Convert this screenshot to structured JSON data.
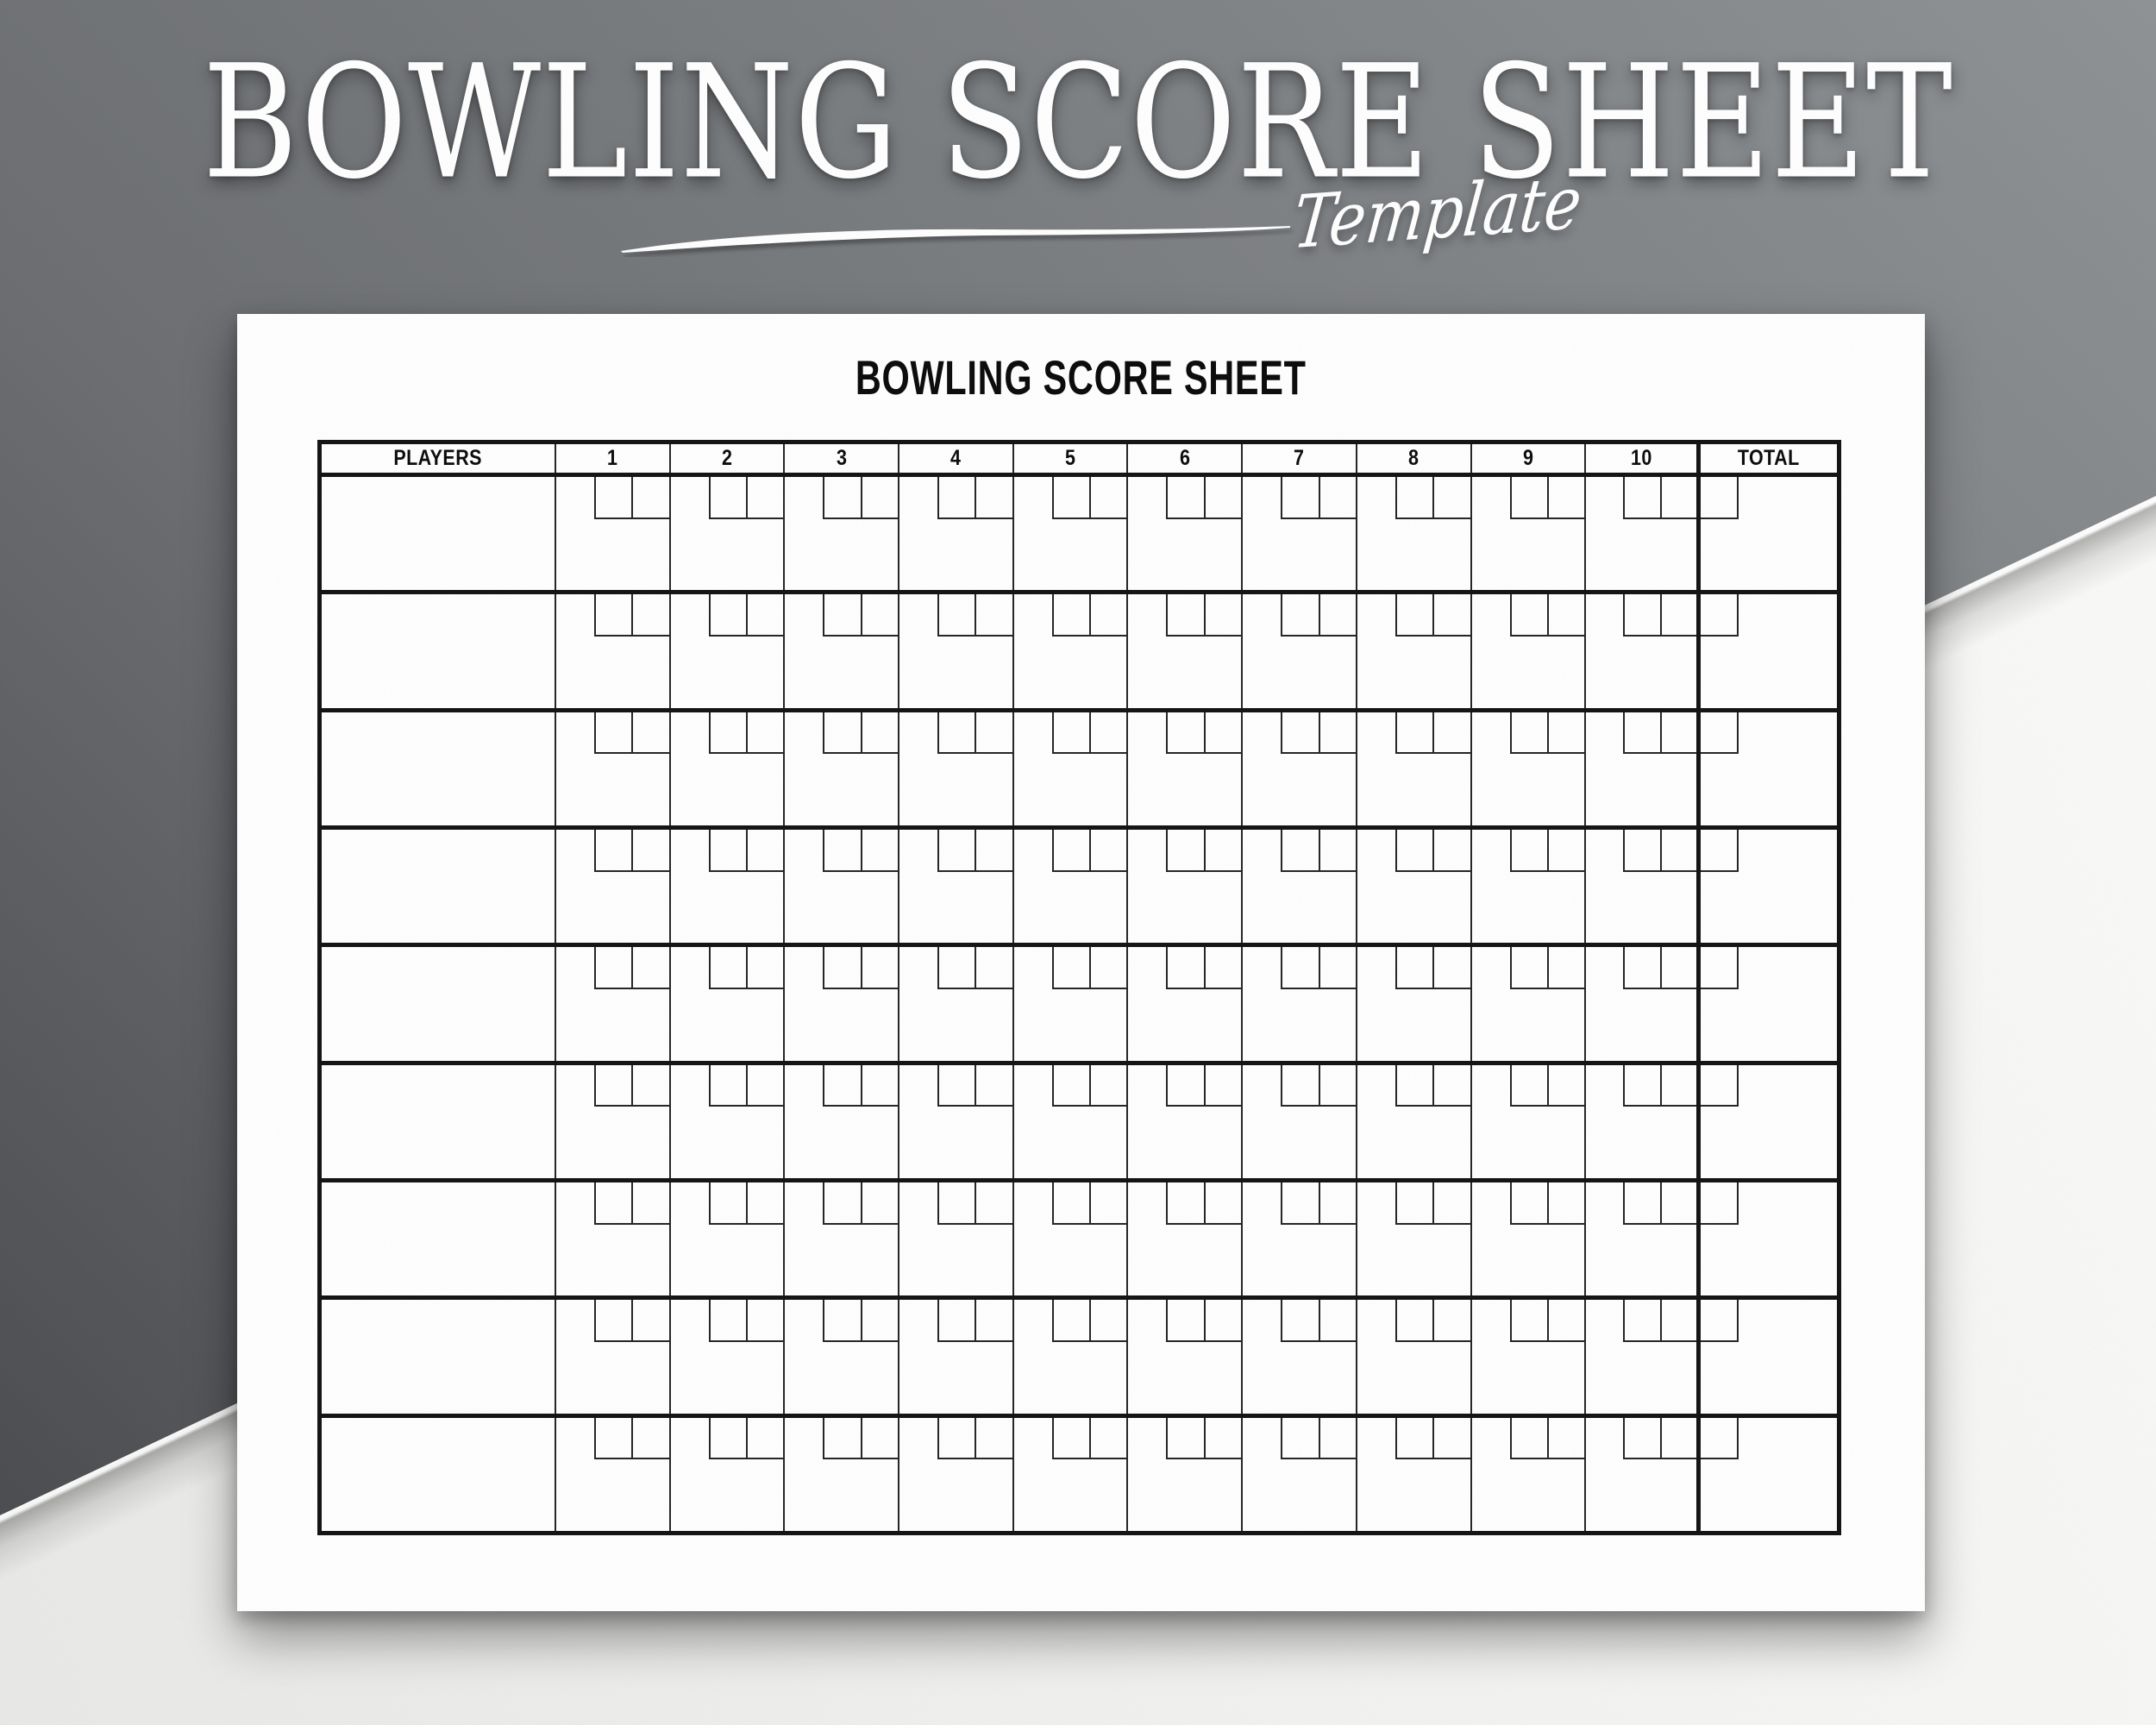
{
  "hero": {
    "title": "BOWLING SCORE SHEET",
    "subtitle": "Template"
  },
  "sheet": {
    "heading": "BOWLING SCORE SHEET",
    "table": {
      "players_header": "PLAYERS",
      "frame_headers": [
        "1",
        "2",
        "3",
        "4",
        "5",
        "6",
        "7",
        "8",
        "9",
        "10"
      ],
      "total_header": "TOTAL",
      "player_rows": 9,
      "balls_per_frame": 2,
      "total_boxes_per_row": 1
    }
  },
  "colors": {
    "background_dark": "#76797c",
    "background_light": "#f4f4f2",
    "paper": "#ffffff",
    "grid_line": "#151515",
    "hero_text": "#ffffff",
    "sheet_text": "#0d0d0d"
  }
}
